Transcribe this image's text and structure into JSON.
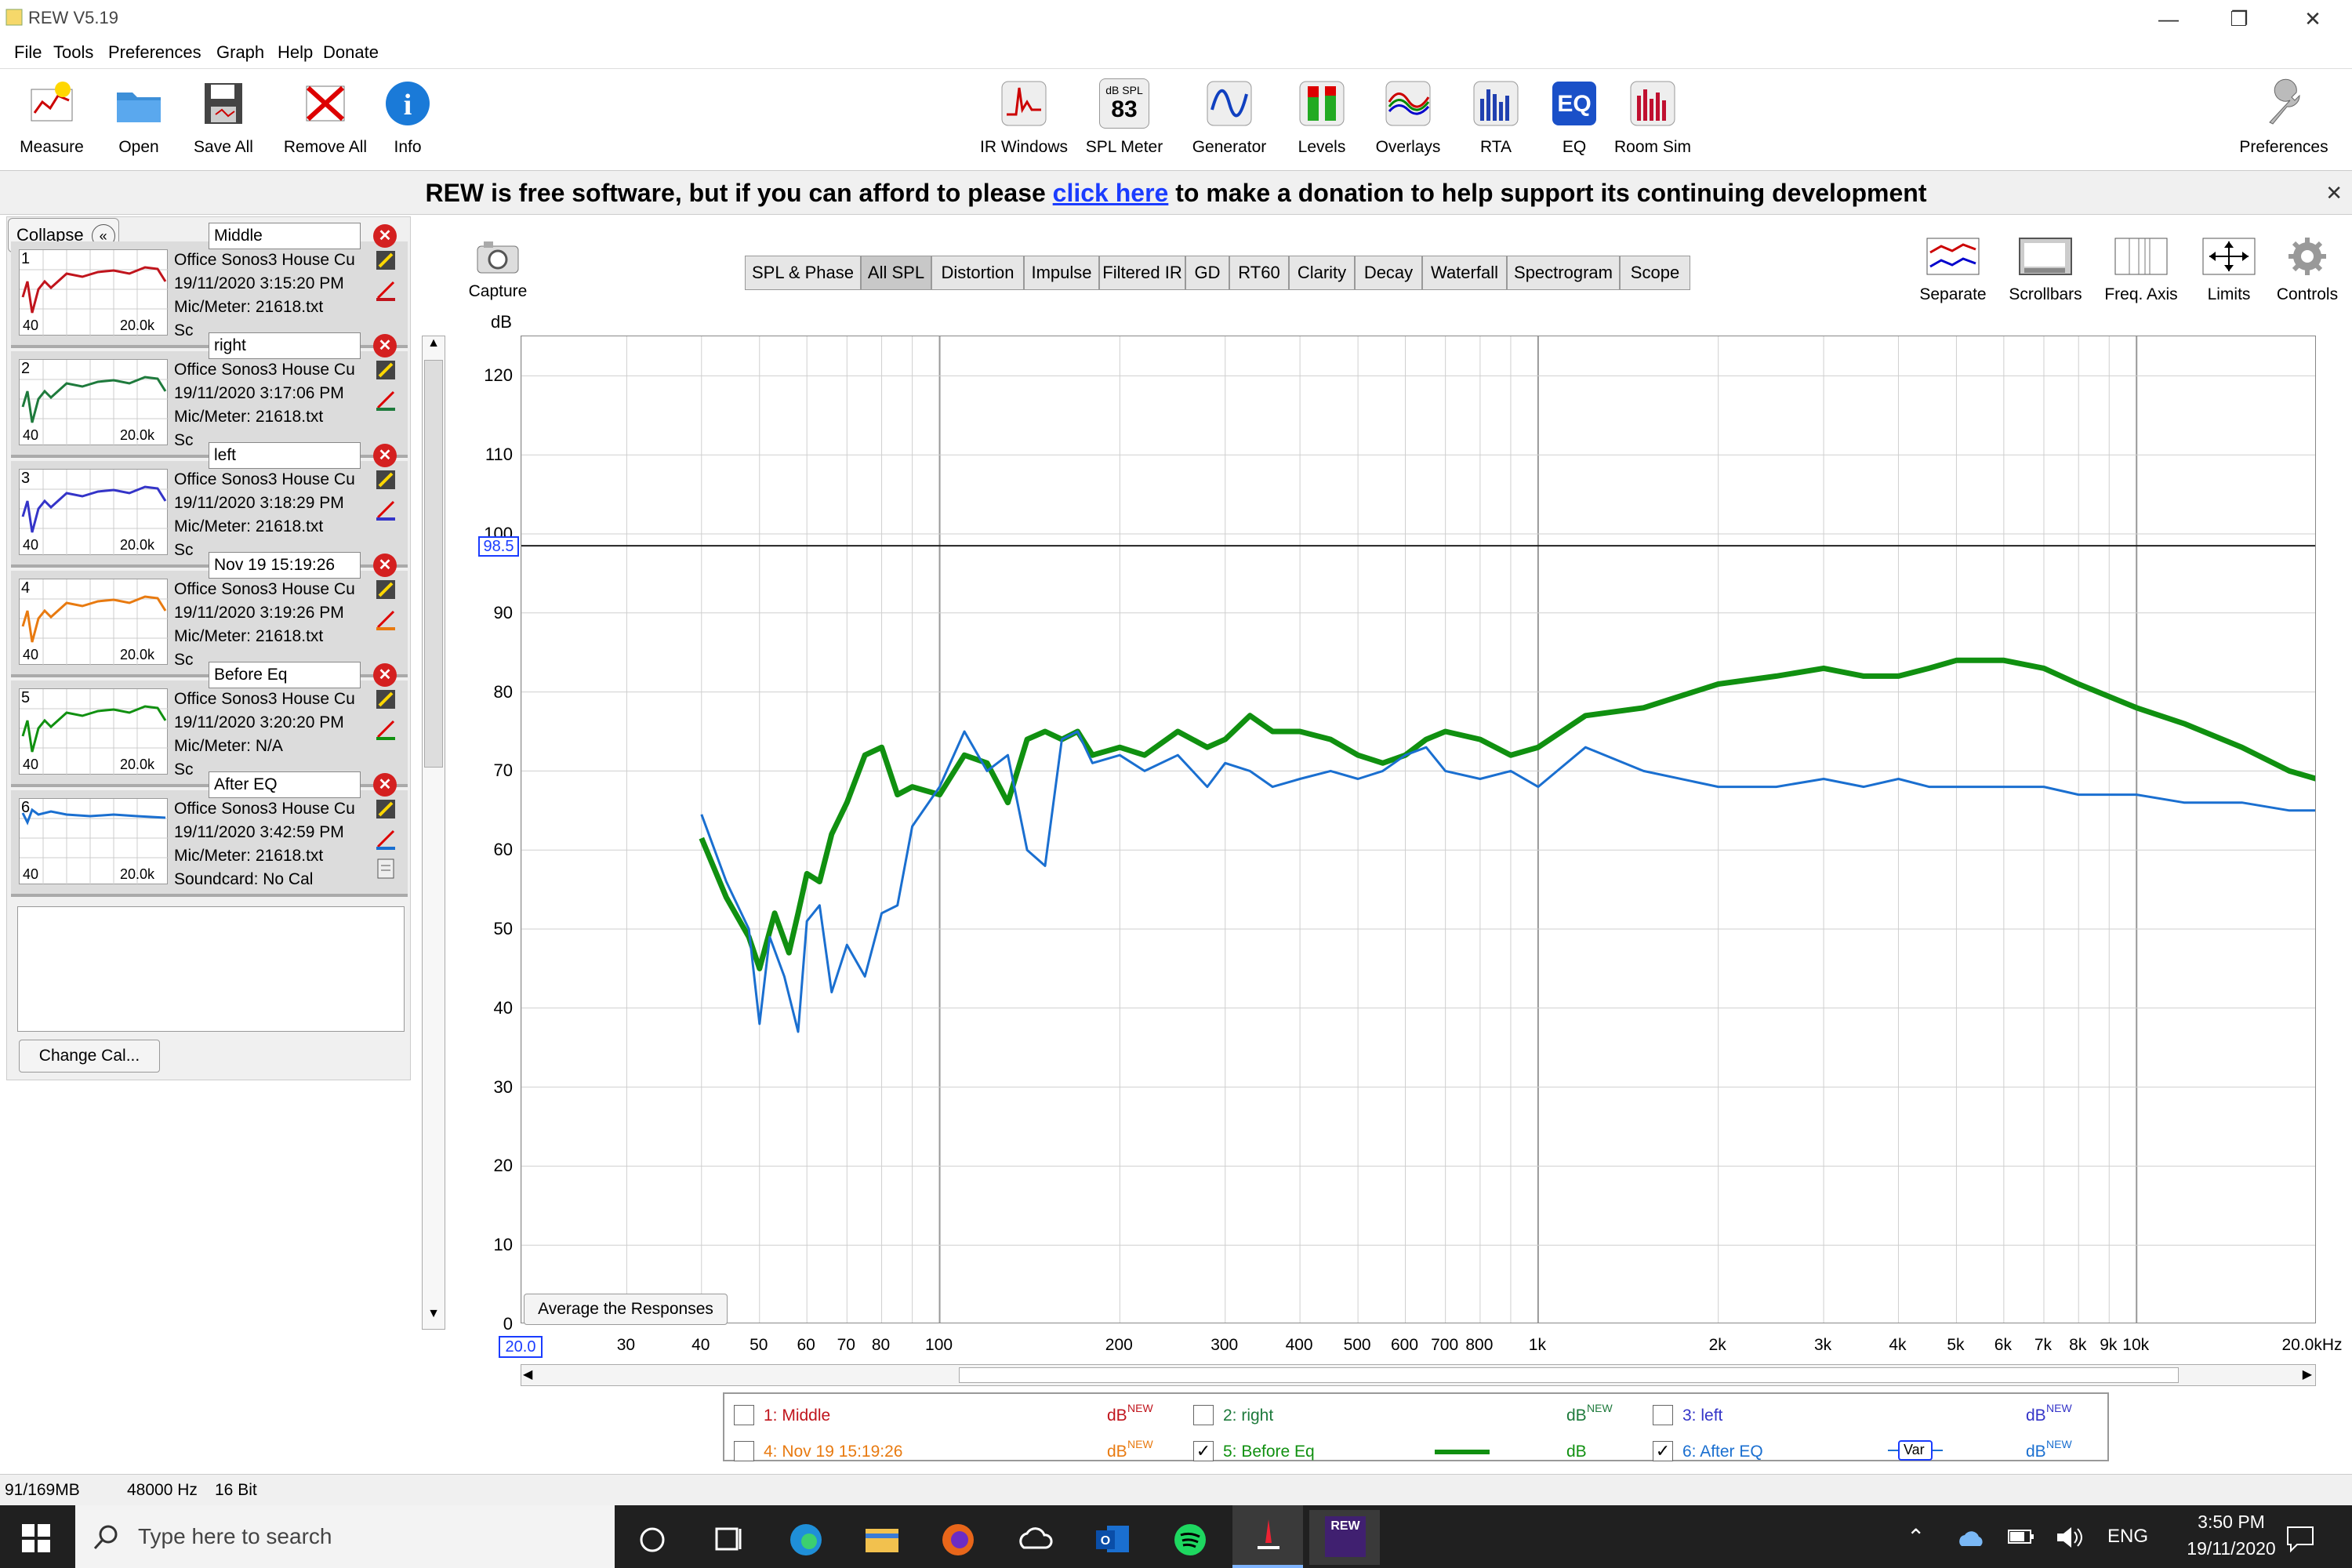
{
  "window": {
    "title": "REW V5.19"
  },
  "menu": [
    "File",
    "Tools",
    "Preferences",
    "Graph",
    "Help",
    "Donate"
  ],
  "toolbar_left": [
    {
      "label": "Measure",
      "icon": "measure-icon"
    },
    {
      "label": "Open",
      "icon": "folder-icon"
    },
    {
      "label": "Save All",
      "icon": "save-icon"
    },
    {
      "label": "Remove All",
      "icon": "remove-icon"
    },
    {
      "label": "Info",
      "icon": "info-icon"
    }
  ],
  "toolbar_center": [
    {
      "label": "IR Windows",
      "icon": "ir-windows-icon"
    },
    {
      "label": "SPL Meter",
      "icon": "spl-meter-icon",
      "badge_top": "dB SPL",
      "badge_value": "83"
    },
    {
      "label": "Generator",
      "icon": "generator-icon"
    },
    {
      "label": "Levels",
      "icon": "levels-icon"
    },
    {
      "label": "Overlays",
      "icon": "overlays-icon"
    },
    {
      "label": "RTA",
      "icon": "rta-icon"
    },
    {
      "label": "EQ",
      "icon": "eq-icon"
    },
    {
      "label": "Room Sim",
      "icon": "room-sim-icon"
    }
  ],
  "toolbar_right": {
    "label": "Preferences",
    "icon": "wrench-icon"
  },
  "donate": {
    "before": "REW is free software, but if you can afford to please ",
    "link": "click here",
    "after": " to make a donation to help support its continuing development"
  },
  "collapse_label": "Collapse",
  "measurements": [
    {
      "num": "1",
      "name": "Middle",
      "line1": "Office Sonos3 House Cu",
      "line2": "19/11/2020 3:15:20 PM",
      "line3": "Mic/Meter: 21618.txt",
      "line4": "Sc",
      "color": "#c0141c",
      "lo": "40",
      "hi": "20.0k"
    },
    {
      "num": "2",
      "name": "right",
      "line1": "Office Sonos3 House Cu",
      "line2": "19/11/2020 3:17:06 PM",
      "line3": "Mic/Meter: 21618.txt",
      "line4": "Sc",
      "color": "#1e7a3c",
      "lo": "40",
      "hi": "20.0k"
    },
    {
      "num": "3",
      "name": "left",
      "line1": "Office Sonos3 House Cu",
      "line2": "19/11/2020 3:18:29 PM",
      "line3": "Mic/Meter: 21618.txt",
      "line4": "Sc",
      "color": "#3434c8",
      "lo": "40",
      "hi": "20.0k"
    },
    {
      "num": "4",
      "name": "Nov 19 15:19:26",
      "line1": "Office Sonos3 House Cu",
      "line2": "19/11/2020 3:19:26 PM",
      "line3": "Mic/Meter: 21618.txt",
      "line4": "Sc",
      "color": "#e87a10",
      "lo": "40",
      "hi": "20.0k"
    },
    {
      "num": "5",
      "name": "Before Eq",
      "line1": "Office Sonos3 House Cu",
      "line2": "19/11/2020 3:20:20 PM",
      "line3": "Mic/Meter: N/A",
      "line4": "Sc",
      "color": "#109010",
      "lo": "40",
      "hi": "20.0k"
    },
    {
      "num": "6",
      "name": "After EQ",
      "line1": "Office Sonos3 House Cu",
      "line2": "19/11/2020 3:42:59 PM",
      "line3": "Mic/Meter: 21618.txt",
      "line4": "Soundcard: No Cal",
      "color": "#1a6fd0",
      "lo": "40",
      "hi": "20.0k"
    }
  ],
  "change_cal": "Change Cal...",
  "capture_label": "Capture",
  "tabs": [
    "SPL & Phase",
    "All SPL",
    "Distortion",
    "Impulse",
    "Filtered IR",
    "GD",
    "RT60",
    "Clarity",
    "Decay",
    "Waterfall",
    "Spectrogram",
    "Scope"
  ],
  "selected_tab": "All SPL",
  "graph_tools": [
    {
      "label": "Separate",
      "icon": "separate-icon"
    },
    {
      "label": "Scrollbars",
      "icon": "scrollbars-icon"
    },
    {
      "label": "Freq. Axis",
      "icon": "freq-axis-icon"
    },
    {
      "label": "Limits",
      "icon": "limits-icon"
    },
    {
      "label": "Controls",
      "icon": "gear-icon"
    }
  ],
  "y_unit": "dB",
  "cursor_value": "98.5",
  "x_start_value": "20.0",
  "average_button": "Average the Responses",
  "legend": [
    {
      "label": "1: Middle",
      "checked": false,
      "unit": "dB",
      "tag": "NEW",
      "color": "#c0141c"
    },
    {
      "label": "2: right",
      "checked": false,
      "unit": "dB",
      "tag": "NEW",
      "color": "#1e7a3c"
    },
    {
      "label": "3: left",
      "checked": false,
      "unit": "dB",
      "tag": "NEW",
      "color": "#3434c8"
    },
    {
      "label": "4: Nov 19 15:19:26",
      "checked": false,
      "unit": "dB",
      "tag": "NEW",
      "color": "#e87a10"
    },
    {
      "label": "5: Before Eq",
      "checked": true,
      "unit": "dB",
      "tag": "",
      "color": "#109010"
    },
    {
      "label": "6: After EQ",
      "checked": true,
      "unit": "dB",
      "tag": "NEW",
      "color": "#1a6fd0",
      "var": "Var"
    }
  ],
  "status": {
    "memory": "91/169MB",
    "rate": "48000 Hz",
    "bits": "16 Bit"
  },
  "taskbar": {
    "search_placeholder": "Type here to search",
    "lang": "ENG",
    "time": "3:50 PM",
    "date": "19/11/2020",
    "rew_label": "REW"
  },
  "chart_data": {
    "type": "line",
    "xscale": "log",
    "xlim": [
      20,
      20000
    ],
    "ylim": [
      0,
      125
    ],
    "ylabel": "dB",
    "x_ticks": [
      20,
      30,
      40,
      50,
      60,
      70,
      80,
      100,
      200,
      300,
      400,
      500,
      600,
      700,
      800,
      1000,
      2000,
      3000,
      4000,
      5000,
      6000,
      7000,
      8000,
      9000,
      10000,
      20000
    ],
    "x_tick_labels": [
      "20.0",
      "30",
      "40",
      "50",
      "60",
      "70",
      "80",
      "100",
      "200",
      "300",
      "400",
      "500",
      "600",
      "700",
      "800",
      "1k",
      "2k",
      "3k",
      "4k",
      "5k",
      "6k",
      "7k",
      "8k",
      "9k",
      "10k",
      "20.0kHz"
    ],
    "y_ticks": [
      0,
      10,
      20,
      30,
      40,
      50,
      60,
      70,
      80,
      90,
      100,
      110,
      120
    ],
    "cursor_y": 98.5,
    "series": [
      {
        "name": "5: Before Eq",
        "color": "#109010",
        "x": [
          40,
          44,
          48,
          50,
          53,
          56,
          58,
          60,
          63,
          66,
          70,
          75,
          80,
          85,
          90,
          100,
          110,
          120,
          130,
          140,
          150,
          160,
          170,
          180,
          200,
          220,
          250,
          280,
          300,
          330,
          360,
          400,
          450,
          500,
          550,
          600,
          650,
          700,
          800,
          900,
          1000,
          1200,
          1500,
          2000,
          2500,
          3000,
          3500,
          4000,
          4500,
          5000,
          6000,
          7000,
          8000,
          10000,
          12000,
          15000,
          18000,
          20000
        ],
        "y": [
          61.5,
          54,
          49,
          45,
          52,
          47,
          52,
          57,
          56,
          62,
          66,
          72,
          73,
          67,
          68,
          67,
          72,
          71,
          66,
          74,
          75,
          74,
          75,
          72,
          73,
          72,
          75,
          73,
          74,
          77,
          75,
          75,
          74,
          72,
          71,
          72,
          74,
          75,
          74,
          72,
          73,
          77,
          78,
          81,
          82,
          83,
          82,
          82,
          83,
          84,
          84,
          83,
          81,
          78,
          76,
          73,
          70,
          69
        ]
      },
      {
        "name": "6: After EQ",
        "color": "#1a6fd0",
        "x": [
          40,
          44,
          48,
          50,
          52,
          55,
          58,
          60,
          63,
          66,
          70,
          75,
          80,
          85,
          90,
          100,
          110,
          120,
          130,
          140,
          150,
          160,
          170,
          180,
          200,
          220,
          250,
          280,
          300,
          330,
          360,
          400,
          450,
          500,
          550,
          600,
          650,
          700,
          800,
          900,
          1000,
          1200,
          1500,
          2000,
          2500,
          3000,
          3500,
          4000,
          4500,
          5000,
          6000,
          7000,
          8000,
          10000,
          12000,
          15000,
          18000,
          20000
        ],
        "y": [
          64.5,
          56,
          50,
          38,
          49,
          44,
          37,
          51,
          53,
          42,
          48,
          44,
          52,
          53,
          63,
          68,
          75,
          70,
          72,
          60,
          58,
          74,
          75,
          71,
          72,
          70,
          72,
          68,
          71,
          70,
          68,
          69,
          70,
          69,
          70,
          72,
          73,
          70,
          69,
          70,
          68,
          73,
          70,
          68,
          68,
          69,
          68,
          69,
          68,
          68,
          68,
          68,
          67,
          67,
          66,
          66,
          65,
          65
        ]
      }
    ]
  }
}
